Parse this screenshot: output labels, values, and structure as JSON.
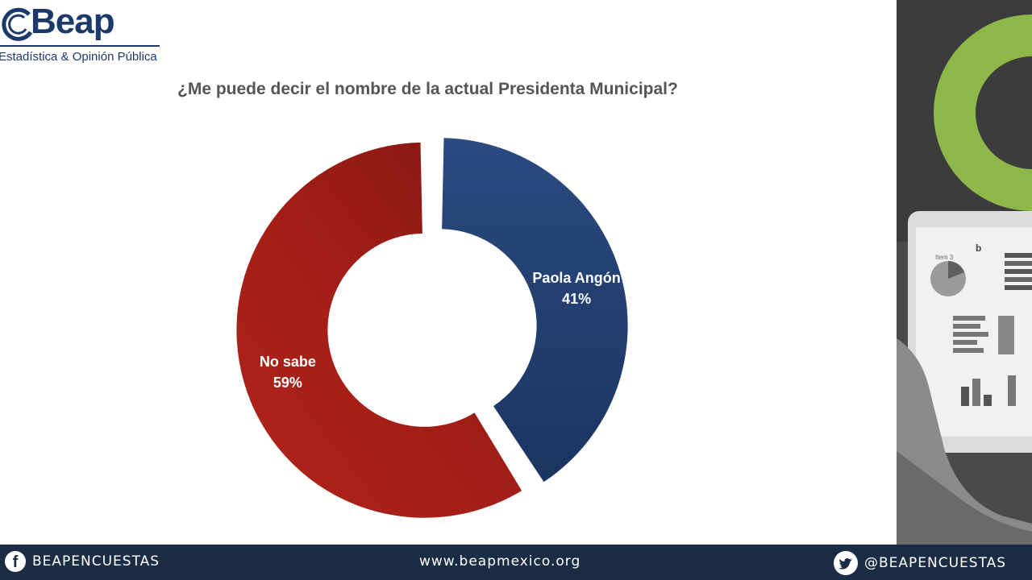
{
  "logo": {
    "name": "Beap",
    "tagline": "Estadística & Opinión Pública"
  },
  "question": "¿Me puede decir el nombre de la actual Presidenta Municipal?",
  "chart_data": {
    "type": "pie",
    "title": "¿Me puede decir el nombre de la actual Presidenta Municipal?",
    "categories": [
      "Paola Angón",
      "No sabe"
    ],
    "values": [
      41,
      59
    ],
    "value_labels": [
      "41%",
      "59%"
    ],
    "colors": [
      "#1f3b6d",
      "#a01f17"
    ],
    "style": "donut, slices exploded"
  },
  "footer": {
    "facebook": "BEAPENCUESTAS",
    "website": "www.beapmexico.org",
    "twitter": "@BEAPENCUESTAS"
  },
  "colors": {
    "brand": "#1b3a6b",
    "footer": "#1b2c45",
    "accent_green": "#8db849"
  }
}
